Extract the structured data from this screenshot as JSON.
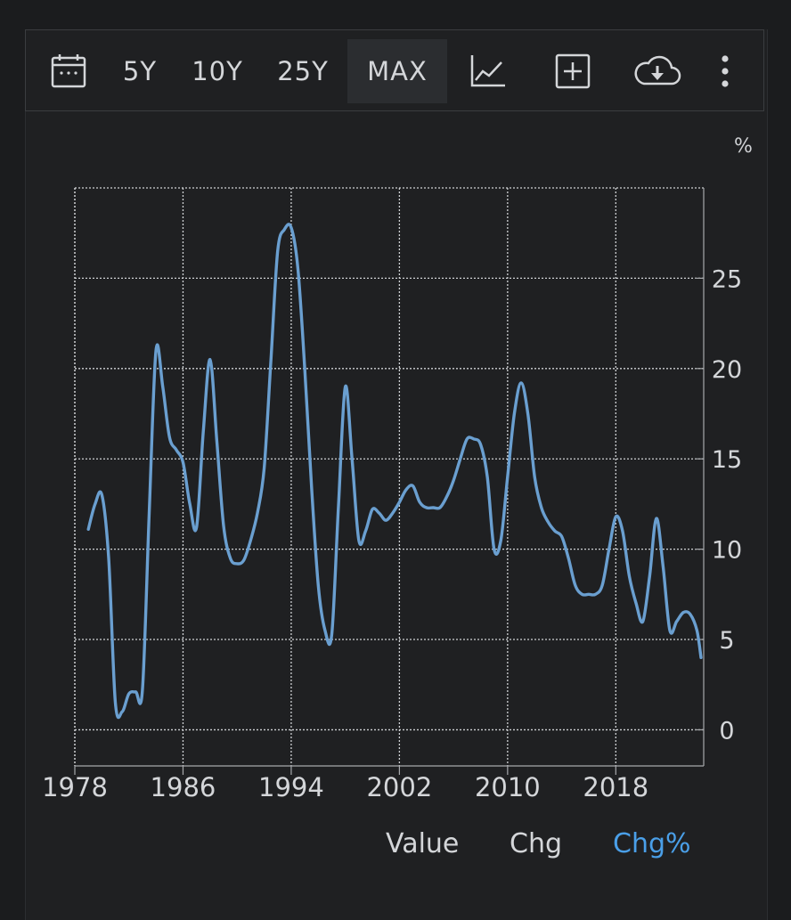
{
  "toolbar": {
    "ranges": [
      "5Y",
      "10Y",
      "25Y",
      "MAX"
    ],
    "active_range": "MAX",
    "icons": [
      "calendar-icon",
      "line-chart-icon",
      "add-box-icon",
      "cloud-download-icon",
      "more-vertical-icon"
    ]
  },
  "colors": {
    "line": "#6a9fd0",
    "grid": "#cfd1d4",
    "accent": "#4a9fe8",
    "text": "#d4d6d9"
  },
  "legend": {
    "value_label": "Value",
    "chg_label": "Chg",
    "chg_pct_label": "Chg%",
    "active": "Chg%"
  },
  "chart_data": {
    "type": "line",
    "unit": "%",
    "x_ticks": [
      "1978",
      "1986",
      "1994",
      "2002",
      "2010",
      "2018"
    ],
    "y_ticks": [
      "0",
      "5",
      "10",
      "15",
      "20",
      "25"
    ],
    "xlim": [
      1978,
      2024.5
    ],
    "ylim": [
      -2,
      30
    ],
    "grid": true,
    "y_axis_side": "right",
    "series": [
      {
        "x": [
          1979.0,
          1979.5,
          1980.0,
          1980.5,
          1981.0,
          1981.5,
          1982.0,
          1982.5,
          1983.0,
          1983.5,
          1984.0,
          1984.5,
          1985.0,
          1985.5,
          1986.0,
          1986.5,
          1987.0,
          1987.5,
          1988.0,
          1988.5,
          1989.0,
          1989.5,
          1990.0,
          1990.5,
          1991.0,
          1991.5,
          1992.0,
          1992.5,
          1993.0,
          1993.5,
          1994.0,
          1994.5,
          1995.0,
          1995.5,
          1996.0,
          1996.5,
          1997.0,
          1997.5,
          1998.0,
          1998.5,
          1999.0,
          1999.5,
          2000.0,
          2000.5,
          2001.0,
          2001.5,
          2002.0,
          2002.5,
          2003.0,
          2003.5,
          2004.0,
          2004.5,
          2005.0,
          2005.5,
          2006.0,
          2006.5,
          2007.0,
          2007.5,
          2008.0,
          2008.5,
          2009.0,
          2009.5,
          2010.0,
          2010.5,
          2011.0,
          2011.5,
          2012.0,
          2012.5,
          2013.0,
          2013.5,
          2014.0,
          2014.5,
          2015.0,
          2015.5,
          2016.0,
          2016.5,
          2017.0,
          2017.5,
          2018.0,
          2018.5,
          2019.0,
          2019.5,
          2020.0,
          2020.5,
          2021.0,
          2021.5,
          2022.0,
          2022.5,
          2023.0,
          2023.5,
          2024.0,
          2024.3
        ],
        "values": [
          11.1,
          12.5,
          13.0,
          9.5,
          1.5,
          1.0,
          2.0,
          2.1,
          2.2,
          12.0,
          21.0,
          19.0,
          16.2,
          15.5,
          14.8,
          12.5,
          11.2,
          16.5,
          20.5,
          16.0,
          11.3,
          9.5,
          9.2,
          9.4,
          10.5,
          12.0,
          14.5,
          20.5,
          26.5,
          27.7,
          27.8,
          25.5,
          20.0,
          13.5,
          8.0,
          5.5,
          5.3,
          12.5,
          19.0,
          15.0,
          10.5,
          11.0,
          12.2,
          12.0,
          11.6,
          12.0,
          12.6,
          13.3,
          13.5,
          12.6,
          12.3,
          12.3,
          12.3,
          12.9,
          13.8,
          15.0,
          16.1,
          16.1,
          15.8,
          14.0,
          10.0,
          10.5,
          14.0,
          17.5,
          19.2,
          17.5,
          14.0,
          12.3,
          11.5,
          11.0,
          10.7,
          9.5,
          8.0,
          7.5,
          7.5,
          7.5,
          8.0,
          10.0,
          11.8,
          11.0,
          8.5,
          7.0,
          6.0,
          8.5,
          11.7,
          9.0,
          5.5,
          6.0,
          6.5,
          6.4,
          5.5,
          4.0
        ]
      }
    ]
  }
}
